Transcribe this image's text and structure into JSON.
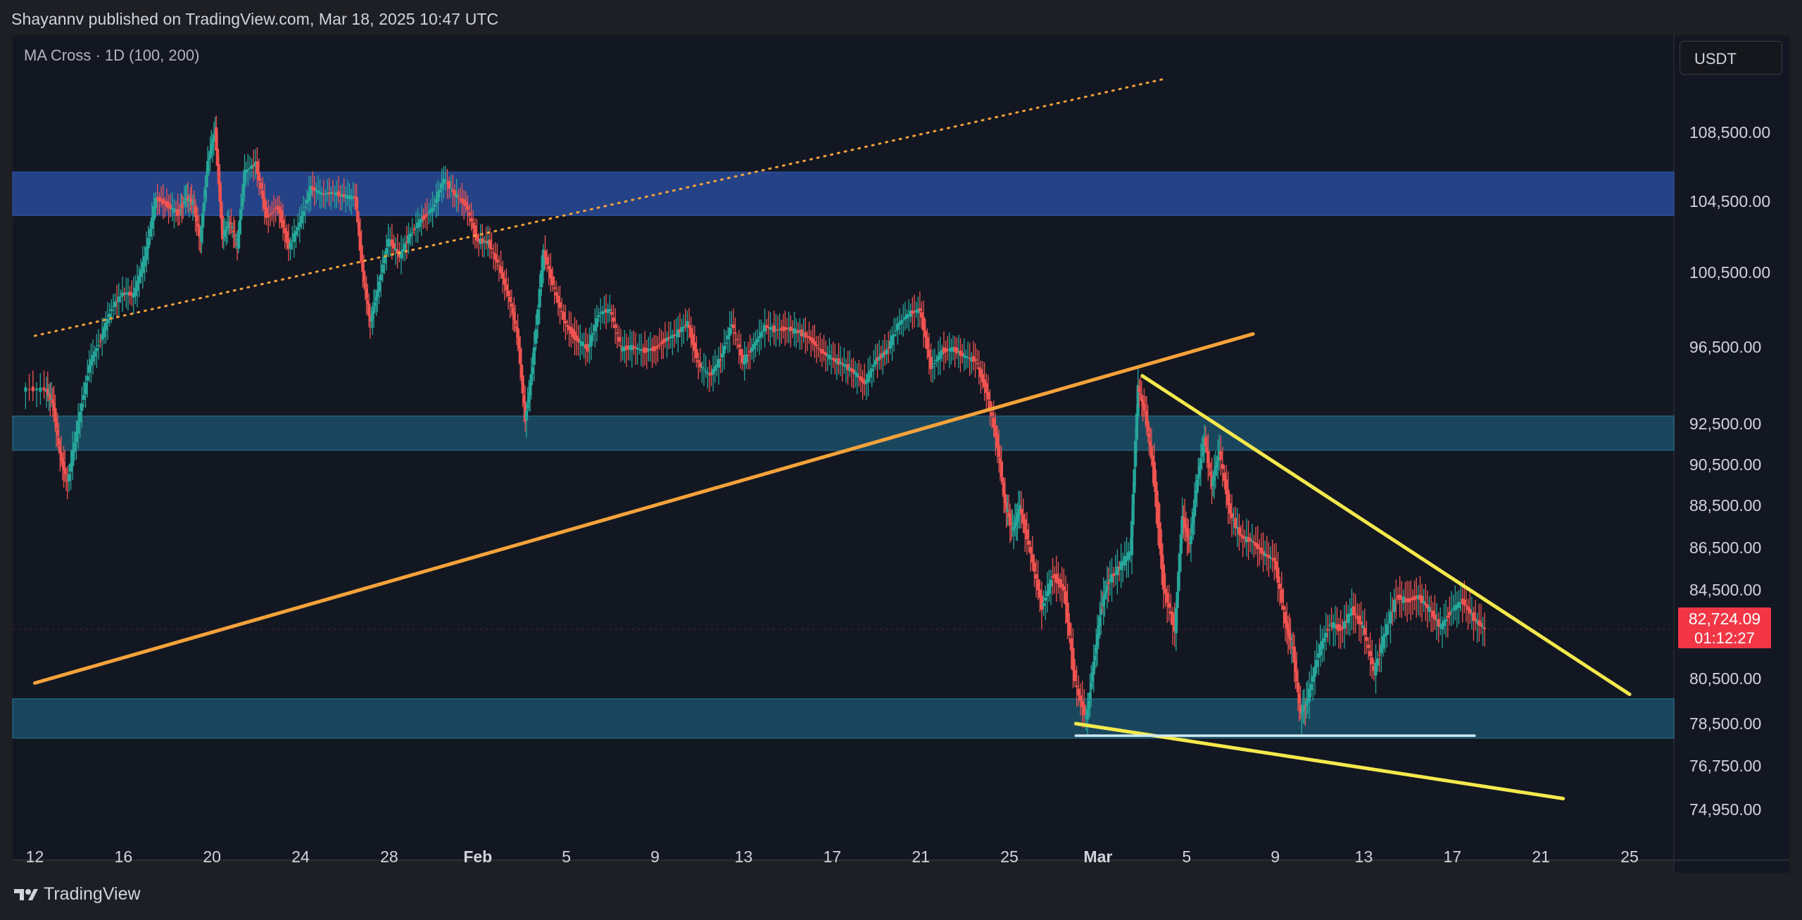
{
  "header": {
    "attribution": "Shayannv published on TradingView.com, Mar 18, 2025 10:47 UTC"
  },
  "indicator": {
    "label": "MA Cross · 1D (100, 200)"
  },
  "currency": {
    "label": "USDT"
  },
  "footer": {
    "brand": "TradingView"
  },
  "colors": {
    "background": "#131722",
    "page_border": "#1e1f24",
    "bull": "#26a69a",
    "bear": "#ef5350",
    "resistance_zone": "#27468f",
    "support_zone": "#1b4b62",
    "orange_line": "#f7a33a",
    "yellow_line": "#f5e94c",
    "white_line": "#cfe9f2",
    "price_label_bg": "#f23645"
  },
  "chart_data": {
    "type": "candlestick",
    "title": "",
    "xlabel": "",
    "ylabel": "",
    "timeframe": "1D",
    "currency": "USDT",
    "y_ticks": [
      108500,
      104500,
      100500,
      96500,
      92500,
      90500,
      88500,
      86500,
      84500,
      80500,
      78500,
      76750,
      74950
    ],
    "y_tick_labels": [
      "108,500.00",
      "104,500.00",
      "100,500.00",
      "96,500.00",
      "92,500.00",
      "90,500.00",
      "88,500.00",
      "86,500.00",
      "84,500.00",
      "80,500.00",
      "78,500.00",
      "76,750.00",
      "74,950.00"
    ],
    "x_tick_labels": [
      "12",
      "16",
      "20",
      "24",
      "28",
      "Feb",
      "5",
      "9",
      "13",
      "17",
      "21",
      "25",
      "Mar",
      "5",
      "9",
      "13",
      "17",
      "21",
      "25"
    ],
    "x_tick_dates": [
      "2025-01-12",
      "2025-01-16",
      "2025-01-20",
      "2025-01-24",
      "2025-01-28",
      "2025-02-01",
      "2025-02-05",
      "2025-02-09",
      "2025-02-13",
      "2025-02-17",
      "2025-02-21",
      "2025-02-25",
      "2025-03-01",
      "2025-03-05",
      "2025-03-09",
      "2025-03-13",
      "2025-03-17",
      "2025-03-21",
      "2025-03-25"
    ],
    "bold_x_ticks": [
      "Feb",
      "Mar"
    ],
    "current_price": {
      "value": 82724.09,
      "label": "82,724.09",
      "countdown": "01:12:27"
    },
    "price_path_2h": [
      [
        "2025-01-12",
        94300
      ],
      [
        "2025-01-13",
        93600
      ],
      [
        "2025-01-13",
        91000
      ],
      [
        "2025-01-13",
        89600
      ],
      [
        "2025-01-14",
        92600
      ],
      [
        "2025-01-14",
        95600
      ],
      [
        "2025-01-15",
        96900
      ],
      [
        "2025-01-15",
        98600
      ],
      [
        "2025-01-16",
        99400
      ],
      [
        "2025-01-16",
        99300
      ],
      [
        "2025-01-17",
        101300
      ],
      [
        "2025-01-17",
        104700
      ],
      [
        "2025-01-18",
        104300
      ],
      [
        "2025-01-18",
        103800
      ],
      [
        "2025-01-19",
        104700
      ],
      [
        "2025-01-19",
        104400
      ],
      [
        "2025-01-19",
        102300
      ],
      [
        "2025-01-20",
        106800
      ],
      [
        "2025-01-20",
        108600
      ],
      [
        "2025-01-20",
        102500
      ],
      [
        "2025-01-21",
        103400
      ],
      [
        "2025-01-21",
        102000
      ],
      [
        "2025-01-21",
        106200
      ],
      [
        "2025-01-22",
        106700
      ],
      [
        "2025-01-22",
        103600
      ],
      [
        "2025-01-23",
        104200
      ],
      [
        "2025-01-23",
        101900
      ],
      [
        "2025-01-24",
        103300
      ],
      [
        "2025-01-24",
        105300
      ],
      [
        "2025-01-25",
        104900
      ],
      [
        "2025-01-25",
        105000
      ],
      [
        "2025-01-26",
        104800
      ],
      [
        "2025-01-26",
        104700
      ],
      [
        "2025-01-27",
        100500
      ],
      [
        "2025-01-27",
        97800
      ],
      [
        "2025-01-27",
        99500
      ],
      [
        "2025-01-28",
        102400
      ],
      [
        "2025-01-28",
        101400
      ],
      [
        "2025-01-29",
        102700
      ],
      [
        "2025-01-29",
        103500
      ],
      [
        "2025-01-30",
        104100
      ],
      [
        "2025-01-30",
        105800
      ],
      [
        "2025-01-31",
        104900
      ],
      [
        "2025-01-31",
        104300
      ],
      [
        "2025-02-01",
        102300
      ],
      [
        "2025-02-01",
        102200
      ],
      [
        "2025-02-02",
        100800
      ],
      [
        "2025-02-02",
        98900
      ],
      [
        "2025-02-03",
        97100
      ],
      [
        "2025-02-03",
        92700
      ],
      [
        "2025-02-03",
        95500
      ],
      [
        "2025-02-04",
        101700
      ],
      [
        "2025-02-04",
        99500
      ],
      [
        "2025-02-05",
        97700
      ],
      [
        "2025-02-05",
        96900
      ],
      [
        "2025-02-06",
        96400
      ],
      [
        "2025-02-06",
        98300
      ],
      [
        "2025-02-07",
        98500
      ],
      [
        "2025-02-07",
        96400
      ],
      [
        "2025-02-08",
        96500
      ],
      [
        "2025-02-08",
        96300
      ],
      [
        "2025-02-09",
        96400
      ],
      [
        "2025-02-09",
        96900
      ],
      [
        "2025-02-10",
        97200
      ],
      [
        "2025-02-10",
        97800
      ],
      [
        "2025-02-11",
        95600
      ],
      [
        "2025-02-11",
        95000
      ],
      [
        "2025-02-12",
        95900
      ],
      [
        "2025-02-12",
        97800
      ],
      [
        "2025-02-13",
        95700
      ],
      [
        "2025-02-13",
        96600
      ],
      [
        "2025-02-14",
        97600
      ],
      [
        "2025-02-14",
        97400
      ],
      [
        "2025-02-15",
        97500
      ],
      [
        "2025-02-15",
        97300
      ],
      [
        "2025-02-16",
        97000
      ],
      [
        "2025-02-16",
        96300
      ],
      [
        "2025-02-17",
        95900
      ],
      [
        "2025-02-17",
        95600
      ],
      [
        "2025-02-18",
        95200
      ],
      [
        "2025-02-18",
        94600
      ],
      [
        "2025-02-19",
        95800
      ],
      [
        "2025-02-19",
        96300
      ],
      [
        "2025-02-20",
        97700
      ],
      [
        "2025-02-20",
        98300
      ],
      [
        "2025-02-21",
        98500
      ],
      [
        "2025-02-21",
        95400
      ],
      [
        "2025-02-22",
        96300
      ],
      [
        "2025-02-22",
        96400
      ],
      [
        "2025-02-23",
        96000
      ],
      [
        "2025-02-23",
        95800
      ],
      [
        "2025-02-24",
        94200
      ],
      [
        "2025-02-24",
        91400
      ],
      [
        "2025-02-25",
        88600
      ],
      [
        "2025-02-25",
        87300
      ],
      [
        "2025-02-25",
        88400
      ],
      [
        "2025-02-26",
        86200
      ],
      [
        "2025-02-26",
        83700
      ],
      [
        "2025-02-27",
        85200
      ],
      [
        "2025-02-27",
        84500
      ],
      [
        "2025-02-28",
        80300
      ],
      [
        "2025-02-28",
        78700
      ],
      [
        "2025-03-01",
        81200
      ],
      [
        "2025-03-01",
        83700
      ],
      [
        "2025-03-01",
        84900
      ],
      [
        "2025-03-02",
        85600
      ],
      [
        "2025-03-02",
        86300
      ],
      [
        "2025-03-03",
        94400
      ],
      [
        "2025-03-03",
        93000
      ],
      [
        "2025-03-03",
        90500
      ],
      [
        "2025-03-04",
        84600
      ],
      [
        "2025-03-04",
        82700
      ],
      [
        "2025-03-05",
        88000
      ],
      [
        "2025-03-05",
        86600
      ],
      [
        "2025-03-05",
        89700
      ],
      [
        "2025-03-06",
        91800
      ],
      [
        "2025-03-06",
        89500
      ],
      [
        "2025-03-06",
        91200
      ],
      [
        "2025-03-07",
        88100
      ],
      [
        "2025-03-07",
        87000
      ],
      [
        "2025-03-08",
        86800
      ],
      [
        "2025-03-08",
        86200
      ],
      [
        "2025-03-09",
        85900
      ],
      [
        "2025-03-09",
        83000
      ],
      [
        "2025-03-10",
        81800
      ],
      [
        "2025-03-10",
        78900
      ],
      [
        "2025-03-10",
        79600
      ],
      [
        "2025-03-11",
        81700
      ],
      [
        "2025-03-11",
        83000
      ],
      [
        "2025-03-12",
        82700
      ],
      [
        "2025-03-12",
        83600
      ],
      [
        "2025-03-13",
        82800
      ],
      [
        "2025-03-13",
        80800
      ],
      [
        "2025-03-14",
        82600
      ],
      [
        "2025-03-14",
        84200
      ],
      [
        "2025-03-15",
        84000
      ],
      [
        "2025-03-15",
        84200
      ],
      [
        "2025-03-16",
        83600
      ],
      [
        "2025-03-16",
        82800
      ],
      [
        "2025-03-17",
        83600
      ],
      [
        "2025-03-17",
        84000
      ],
      [
        "2025-03-18",
        83200
      ],
      [
        "2025-03-18",
        82724
      ]
    ],
    "zones": [
      {
        "name": "resistance",
        "from": 103700,
        "to": 106200
      },
      {
        "name": "upper-support",
        "from": 91200,
        "to": 92900
      },
      {
        "name": "lower-support",
        "from": 77900,
        "to": 79600
      }
    ],
    "trendlines": [
      {
        "name": "dotted-orange",
        "style": "dotted",
        "points": [
          [
            "2025-01-12",
            97100
          ],
          [
            "2025-03-04",
            111600
          ]
        ]
      },
      {
        "name": "solid-orange",
        "style": "solid",
        "points": [
          [
            "2025-01-12",
            80300
          ],
          [
            "2025-03-08",
            97200
          ]
        ]
      },
      {
        "name": "upper-yellow",
        "style": "solid",
        "points": [
          [
            "2025-03-03",
            95000
          ],
          [
            "2025-03-25",
            79800
          ]
        ]
      },
      {
        "name": "lower-yellow",
        "style": "solid",
        "points": [
          [
            "2025-02-28",
            78500
          ],
          [
            "2025-03-22",
            75400
          ]
        ]
      },
      {
        "name": "white-support",
        "style": "solid",
        "points": [
          [
            "2025-02-28",
            78000
          ],
          [
            "2025-03-18",
            78000
          ]
        ]
      }
    ]
  }
}
